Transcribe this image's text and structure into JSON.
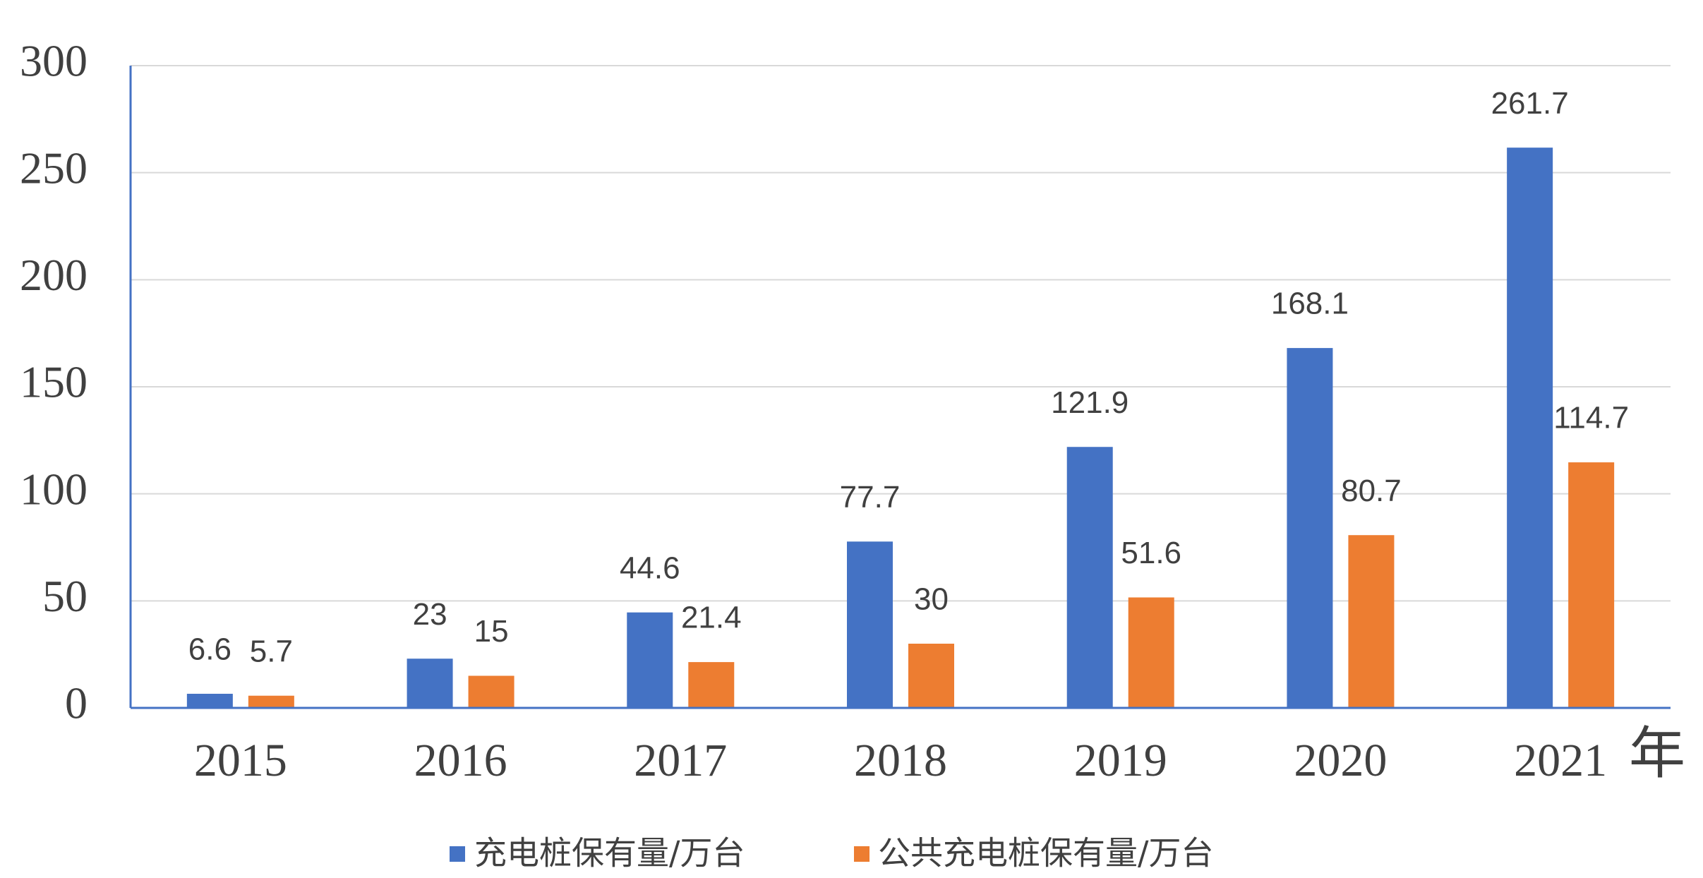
{
  "chart_data": {
    "type": "bar",
    "title": "",
    "categories": [
      "2015",
      "2016",
      "2017",
      "2018",
      "2019",
      "2020",
      "2021"
    ],
    "series": [
      {
        "name": "充电桩保有量/万台",
        "color": "#4472C4",
        "values": [
          6.6,
          23,
          44.6,
          77.7,
          121.9,
          168.1,
          261.7
        ]
      },
      {
        "name": "公共充电桩保有量/万台",
        "color": "#ED7D31",
        "values": [
          5.7,
          15,
          21.4,
          30,
          51.6,
          80.7,
          114.7
        ]
      }
    ],
    "xlabel": "年",
    "ylabel": "",
    "ylim": [
      0,
      300
    ],
    "yticks": [
      0,
      50,
      100,
      150,
      200,
      250,
      300
    ],
    "grid": true,
    "grid_color": "#D9D9D9",
    "axis_color": "#4472C4",
    "data_labels": true,
    "legend": "bottom-center"
  }
}
